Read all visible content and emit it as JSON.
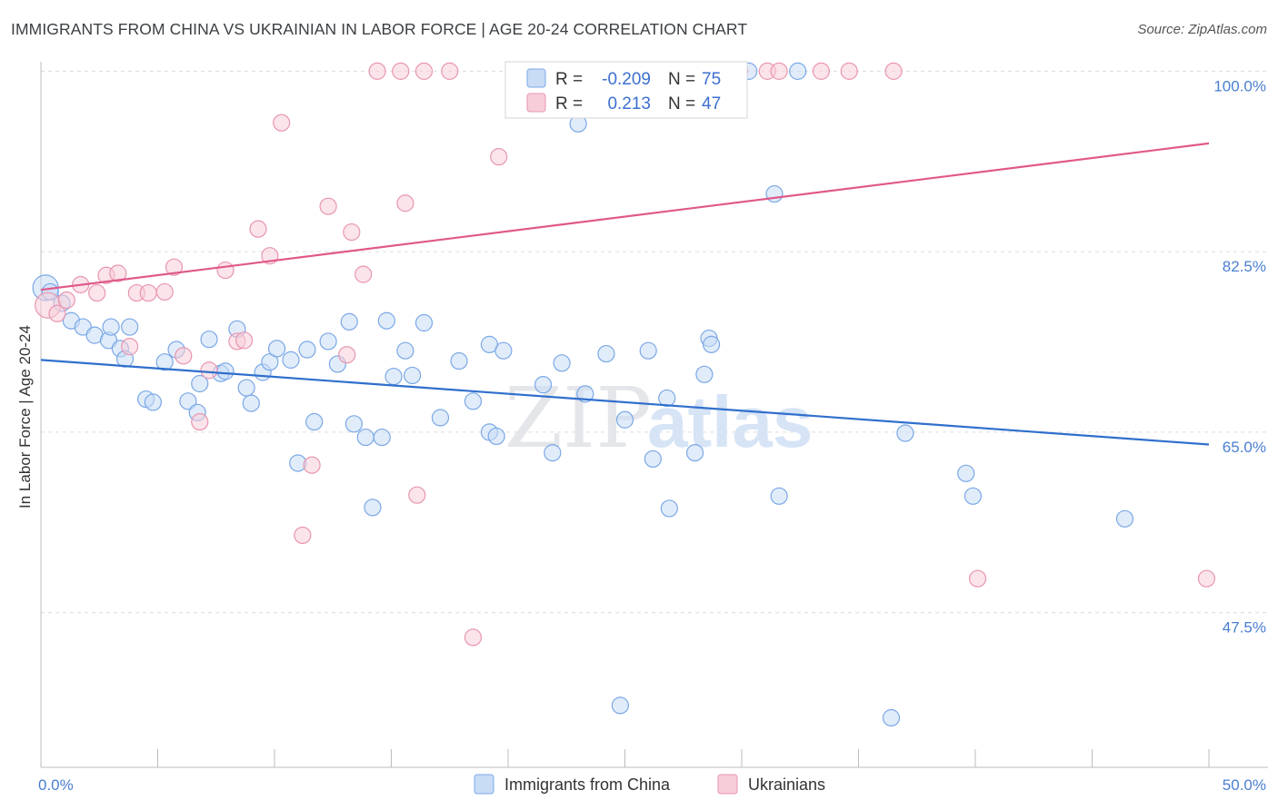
{
  "header": {
    "title": "IMMIGRANTS FROM CHINA VS UKRAINIAN IN LABOR FORCE | AGE 20-24 CORRELATION CHART",
    "source": "Source: ZipAtlas.com"
  },
  "watermark": {
    "zip": "ZIP",
    "atlas": "atlas"
  },
  "chart_data": {
    "type": "scatter",
    "title": "IMMIGRANTS FROM CHINA VS UKRAINIAN IN LABOR FORCE | AGE 20-24 CORRELATION CHART",
    "ylabel": "In Labor Force | Age 20-24",
    "xlim": [
      0,
      50
    ],
    "ylim": [
      32.5,
      102.5
    ],
    "x_tick_labels": [
      "0.0%",
      "50.0%"
    ],
    "y_ticks": [
      {
        "value": 100,
        "label": "100.0%"
      },
      {
        "value": 82.5,
        "label": "82.5%"
      },
      {
        "value": 65,
        "label": "65.0%"
      },
      {
        "value": 47.5,
        "label": "47.5%"
      }
    ],
    "grid": true,
    "legend": {
      "placement": "top-center",
      "entries": [
        {
          "r_label": "R =",
          "r_value": "-0.209",
          "n_label": "N =",
          "n_value": "75"
        },
        {
          "r_label": "R =",
          "r_value": "0.213",
          "n_label": "N =",
          "n_value": "47"
        }
      ]
    },
    "series": [
      {
        "name": "Immigrants from China",
        "color": "#7aa8e6",
        "fill": "#c9dcf5",
        "trend_color": "#2f6fcc",
        "trend": {
          "x": [
            0,
            50
          ],
          "y": [
            72.0,
            63.8
          ]
        },
        "points": [
          [
            0.2,
            79.0
          ],
          [
            0.4,
            78.6
          ],
          [
            0.9,
            77.5
          ],
          [
            1.3,
            75.8
          ],
          [
            1.8,
            75.2
          ],
          [
            2.3,
            74.4
          ],
          [
            2.9,
            73.9
          ],
          [
            3.0,
            75.2
          ],
          [
            3.8,
            75.2
          ],
          [
            3.4,
            73.1
          ],
          [
            3.6,
            72.1
          ],
          [
            4.5,
            68.2
          ],
          [
            4.8,
            67.9
          ],
          [
            5.3,
            71.8
          ],
          [
            5.8,
            73.0
          ],
          [
            6.3,
            68.0
          ],
          [
            6.7,
            66.9
          ],
          [
            6.8,
            69.7
          ],
          [
            7.2,
            74.0
          ],
          [
            7.7,
            70.7
          ],
          [
            7.9,
            70.9
          ],
          [
            8.4,
            75.0
          ],
          [
            8.8,
            69.3
          ],
          [
            9.0,
            67.8
          ],
          [
            9.5,
            70.8
          ],
          [
            9.8,
            71.8
          ],
          [
            10.1,
            73.1
          ],
          [
            10.7,
            72.0
          ],
          [
            11.0,
            62.0
          ],
          [
            11.4,
            73.0
          ],
          [
            11.7,
            66.0
          ],
          [
            12.3,
            73.8
          ],
          [
            12.7,
            71.6
          ],
          [
            13.2,
            75.7
          ],
          [
            13.4,
            65.8
          ],
          [
            13.9,
            64.5
          ],
          [
            14.2,
            57.7
          ],
          [
            14.6,
            64.5
          ],
          [
            14.8,
            75.8
          ],
          [
            15.1,
            70.4
          ],
          [
            15.6,
            72.9
          ],
          [
            15.9,
            70.5
          ],
          [
            16.4,
            75.6
          ],
          [
            17.1,
            66.4
          ],
          [
            17.9,
            71.9
          ],
          [
            18.5,
            68.0
          ],
          [
            19.2,
            73.5
          ],
          [
            19.2,
            65.0
          ],
          [
            19.5,
            64.6
          ],
          [
            19.8,
            72.9
          ],
          [
            21.5,
            69.6
          ],
          [
            21.9,
            63.0
          ],
          [
            22.3,
            71.7
          ],
          [
            23.0,
            94.9
          ],
          [
            23.3,
            68.7
          ],
          [
            24.2,
            72.6
          ],
          [
            24.8,
            38.5
          ],
          [
            25.0,
            66.2
          ],
          [
            26.0,
            72.9
          ],
          [
            26.2,
            62.4
          ],
          [
            26.8,
            68.3
          ],
          [
            26.9,
            57.6
          ],
          [
            28.0,
            63.0
          ],
          [
            28.4,
            70.6
          ],
          [
            28.6,
            74.1
          ],
          [
            28.7,
            73.5
          ],
          [
            30.3,
            100.0
          ],
          [
            31.4,
            88.1
          ],
          [
            31.6,
            58.8
          ],
          [
            32.4,
            100.0
          ],
          [
            37.0,
            64.9
          ],
          [
            39.9,
            58.8
          ],
          [
            36.4,
            37.3
          ],
          [
            39.6,
            61.0
          ],
          [
            46.4,
            56.6
          ]
        ]
      },
      {
        "name": "Ukrainians",
        "color": "#e896b0",
        "fill": "#f7cdd9",
        "trend_color": "#e0588a",
        "trend": {
          "x": [
            0,
            50
          ],
          "y": [
            78.8,
            93.0
          ]
        },
        "points": [
          [
            0.3,
            77.3
          ],
          [
            0.7,
            76.5
          ],
          [
            1.1,
            77.8
          ],
          [
            1.7,
            79.3
          ],
          [
            2.4,
            78.5
          ],
          [
            2.8,
            80.2
          ],
          [
            3.3,
            80.4
          ],
          [
            3.8,
            73.3
          ],
          [
            4.1,
            78.5
          ],
          [
            4.6,
            78.5
          ],
          [
            5.3,
            78.6
          ],
          [
            5.7,
            81.0
          ],
          [
            6.1,
            72.4
          ],
          [
            6.8,
            66.0
          ],
          [
            7.2,
            71.0
          ],
          [
            7.9,
            80.7
          ],
          [
            8.4,
            73.8
          ],
          [
            8.7,
            73.9
          ],
          [
            9.3,
            84.7
          ],
          [
            9.8,
            82.1
          ],
          [
            10.3,
            95.0
          ],
          [
            11.2,
            55.0
          ],
          [
            11.6,
            61.8
          ],
          [
            12.3,
            86.9
          ],
          [
            13.1,
            72.5
          ],
          [
            13.3,
            84.4
          ],
          [
            13.8,
            80.3
          ],
          [
            14.4,
            100.0
          ],
          [
            15.4,
            100.0
          ],
          [
            15.6,
            87.2
          ],
          [
            16.1,
            58.9
          ],
          [
            16.4,
            100.0
          ],
          [
            17.5,
            100.0
          ],
          [
            18.5,
            45.1
          ],
          [
            19.6,
            91.7
          ],
          [
            24.2,
            100.0
          ],
          [
            24.6,
            100.0
          ],
          [
            24.8,
            100.0
          ],
          [
            28.4,
            100.0
          ],
          [
            29.9,
            100.0
          ],
          [
            31.1,
            100.0
          ],
          [
            31.6,
            100.0
          ],
          [
            33.4,
            100.0
          ],
          [
            34.6,
            100.0
          ],
          [
            36.5,
            100.0
          ],
          [
            40.1,
            50.8
          ],
          [
            49.9,
            50.8
          ]
        ]
      }
    ]
  }
}
